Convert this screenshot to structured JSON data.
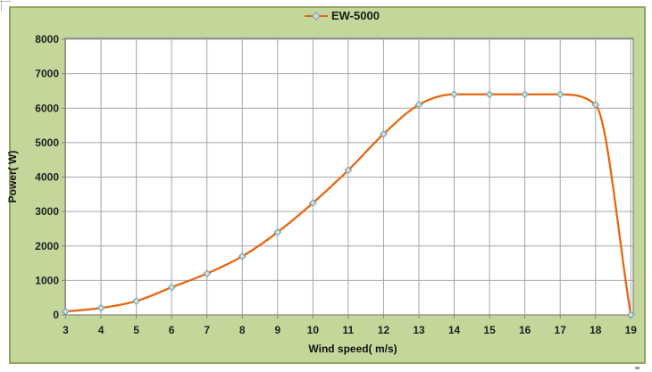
{
  "chart_data": {
    "type": "line",
    "title": "",
    "xlabel": "Wind speed( m/s)",
    "ylabel": "Power( W)",
    "x": [
      3,
      4,
      5,
      6,
      7,
      8,
      9,
      10,
      11,
      12,
      13,
      14,
      15,
      16,
      17,
      18,
      19
    ],
    "series": [
      {
        "name": "EW-5000",
        "values": [
          100,
          200,
          400,
          800,
          1200,
          1700,
          2400,
          3250,
          4200,
          5250,
          6100,
          6400,
          6400,
          6400,
          6400,
          6100,
          0
        ]
      }
    ],
    "xlim": [
      3,
      19
    ],
    "ylim": [
      0,
      8000
    ],
    "x_ticks": [
      3,
      4,
      5,
      6,
      7,
      8,
      9,
      10,
      11,
      12,
      13,
      14,
      15,
      16,
      17,
      18,
      19
    ],
    "y_ticks": [
      0,
      1000,
      2000,
      3000,
      4000,
      5000,
      6000,
      7000,
      8000
    ],
    "grid": true,
    "legend_position": "top-center",
    "marker": "diamond"
  },
  "style": {
    "page_background": "#FFFFFF",
    "chart_fill": "#C4D79B",
    "chart_border": "#94A55E",
    "plot_fill": "#FFFFFF",
    "grid_color": "#A6A6A6",
    "axis_color": "#808080",
    "series_color": "#E8650C",
    "marker_fill": "#D7E4BD",
    "marker_stroke": "#76A0C6",
    "tick_text_color": "#1F1F1F"
  }
}
